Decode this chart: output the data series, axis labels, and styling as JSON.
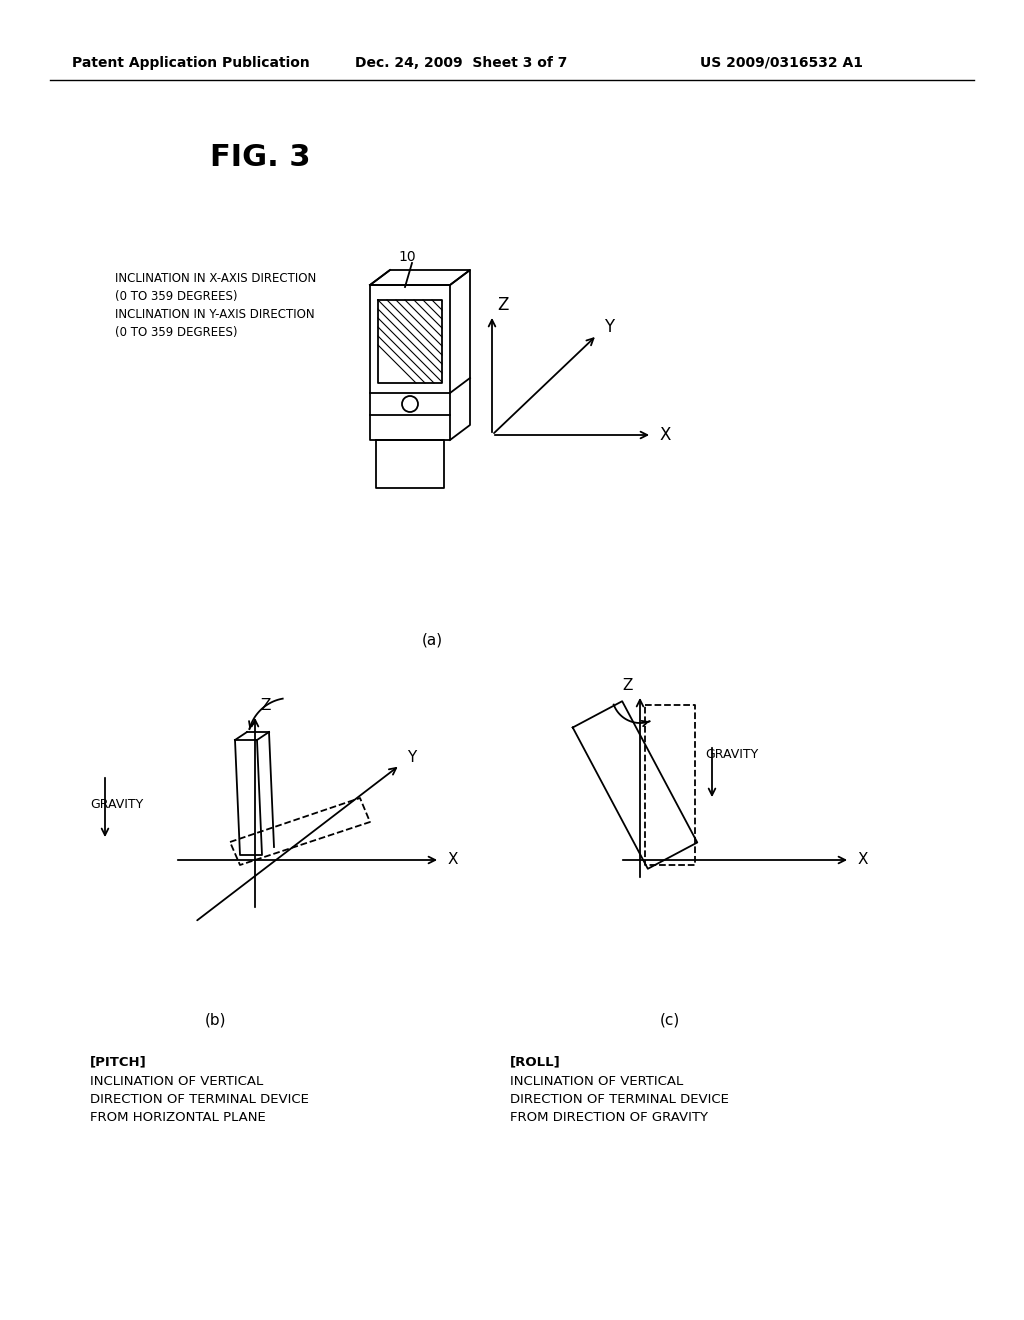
{
  "bg_color": "#ffffff",
  "header_left": "Patent Application Publication",
  "header_center": "Dec. 24, 2009  Sheet 3 of 7",
  "header_right": "US 2009/0316532 A1",
  "fig_title": "FIG. 3",
  "label_a": "(a)",
  "label_b": "(b)",
  "label_c": "(c)",
  "annotation_a": "INCLINATION IN X-AXIS DIRECTION\n(0 TO 359 DEGREES)\nINCLINATION IN Y-AXIS DIRECTION\n(0 TO 359 DEGREES)",
  "device_label": "10",
  "pitch_header": "[PITCH]",
  "pitch_text": "INCLINATION OF VERTICAL\nDIRECTION OF TERMINAL DEVICE\nFROM HORIZONTAL PLANE",
  "roll_header": "[ROLL]",
  "roll_text": "INCLINATION OF VERTICAL\nDIRECTION OF TERMINAL DEVICE\nFROM DIRECTION OF GRAVITY",
  "gravity_text": "GRAVITY"
}
